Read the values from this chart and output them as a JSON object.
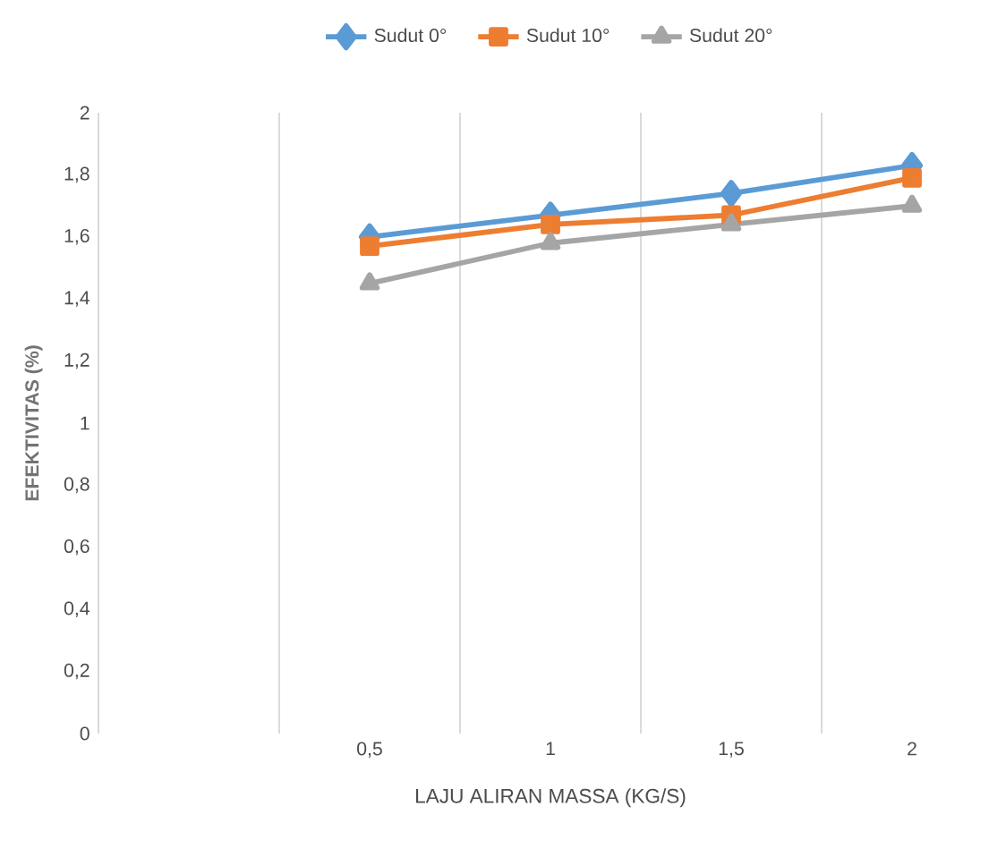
{
  "chart_data": {
    "type": "line",
    "categories": [
      null,
      "0,5",
      "1",
      "1,5",
      "2"
    ],
    "series": [
      {
        "name": "Sudut 0°",
        "color": "#5b9bd5",
        "marker": "diamond",
        "values": [
          null,
          1.6,
          1.67,
          1.74,
          1.83
        ]
      },
      {
        "name": "Sudut 10°",
        "color": "#ed7d31",
        "marker": "square",
        "values": [
          null,
          1.57,
          1.64,
          1.67,
          1.79
        ]
      },
      {
        "name": "Sudut 20°",
        "color": "#a5a5a5",
        "marker": "triangle",
        "values": [
          null,
          1.45,
          1.58,
          1.64,
          1.7
        ]
      }
    ],
    "xlabel": "LAJU ALIRAN MASSA (KG/S)",
    "ylabel": "EFEKTIVITAS (%)",
    "ylim": [
      0,
      2
    ],
    "yticks": [
      0,
      {
        "value": 0.2,
        "label": "0,2"
      },
      {
        "value": 0.4,
        "label": "0,4"
      },
      {
        "value": 0.6,
        "label": "0,6"
      },
      {
        "value": 0.8,
        "label": "0,8"
      },
      1,
      {
        "value": 1.2,
        "label": "1,2"
      },
      {
        "value": 1.4,
        "label": "1,4"
      },
      {
        "value": 1.6,
        "label": "1,6"
      },
      {
        "value": 1.8,
        "label": "1,8"
      },
      2
    ],
    "grid": "x",
    "legend": "top"
  }
}
